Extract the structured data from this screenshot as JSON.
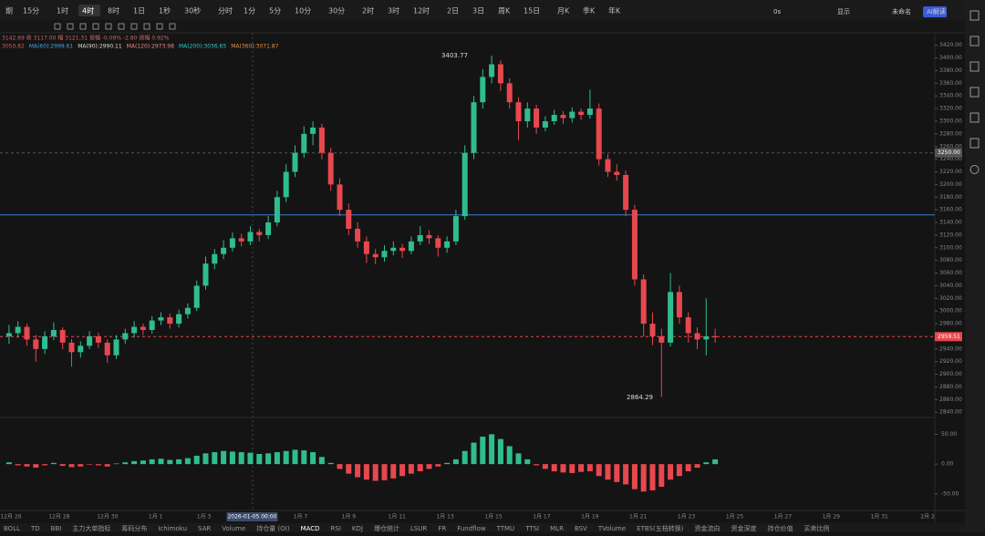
{
  "toolbar": {
    "intervals": [
      "期",
      "15分",
      "1时",
      "4时",
      "8时",
      "1日",
      "1秒",
      "30秒",
      "分时",
      "1分",
      "5分",
      "10分",
      "30分",
      "2时",
      "3时",
      "12时",
      "2日",
      "3日",
      "周K",
      "15日",
      "月K",
      "季K",
      "年K"
    ],
    "active": 3,
    "right": [
      "0s",
      "显示",
      "未命名",
      "AI解读"
    ]
  },
  "legend": {
    "line1": "3142.69  收 3117.00  幅 3121.31  振幅 -0.09% -2.80  振幅 0.92%",
    "line2": [
      "3050.82",
      "MA(60):2999.61",
      "MA(90):2990.11",
      "MA(120):2973.98",
      "MA(200):3036.65",
      "MA(360):3071.87"
    ]
  },
  "chart_data": {
    "type": "candlestick",
    "candles": [
      [
        2960,
        2978,
        2948,
        2965
      ],
      [
        2965,
        2984,
        2958,
        2975
      ],
      [
        2975,
        2980,
        2945,
        2955
      ],
      [
        2955,
        2962,
        2920,
        2940
      ],
      [
        2940,
        2968,
        2932,
        2960
      ],
      [
        2960,
        2982,
        2954,
        2970
      ],
      [
        2970,
        2974,
        2940,
        2950
      ],
      [
        2950,
        2956,
        2912,
        2935
      ],
      [
        2935,
        2952,
        2926,
        2945
      ],
      [
        2945,
        2968,
        2940,
        2960
      ],
      [
        2960,
        2966,
        2942,
        2950
      ],
      [
        2950,
        2955,
        2918,
        2930
      ],
      [
        2930,
        2962,
        2924,
        2955
      ],
      [
        2955,
        2972,
        2948,
        2965
      ],
      [
        2965,
        2984,
        2958,
        2975
      ],
      [
        2975,
        2980,
        2962,
        2970
      ],
      [
        2970,
        2992,
        2964,
        2985
      ],
      [
        2985,
        2998,
        2978,
        2990
      ],
      [
        2990,
        2996,
        2972,
        2980
      ],
      [
        2980,
        3002,
        2974,
        2995
      ],
      [
        2995,
        3012,
        2988,
        3005
      ],
      [
        3005,
        3048,
        3000,
        3040
      ],
      [
        3040,
        3086,
        3034,
        3075
      ],
      [
        3075,
        3098,
        3066,
        3090
      ],
      [
        3090,
        3112,
        3082,
        3100
      ],
      [
        3100,
        3124,
        3094,
        3115
      ],
      [
        3115,
        3122,
        3102,
        3110
      ],
      [
        3110,
        3134,
        3104,
        3125
      ],
      [
        3125,
        3130,
        3110,
        3120
      ],
      [
        3120,
        3150,
        3114,
        3140
      ],
      [
        3140,
        3190,
        3134,
        3180
      ],
      [
        3180,
        3232,
        3172,
        3220
      ],
      [
        3220,
        3262,
        3212,
        3250
      ],
      [
        3250,
        3292,
        3242,
        3280
      ],
      [
        3280,
        3300,
        3262,
        3290
      ],
      [
        3290,
        3296,
        3240,
        3250
      ],
      [
        3250,
        3258,
        3190,
        3200
      ],
      [
        3200,
        3210,
        3150,
        3160
      ],
      [
        3160,
        3170,
        3120,
        3130
      ],
      [
        3130,
        3140,
        3100,
        3110
      ],
      [
        3110,
        3118,
        3076,
        3090
      ],
      [
        3090,
        3098,
        3074,
        3085
      ],
      [
        3085,
        3104,
        3078,
        3095
      ],
      [
        3095,
        3110,
        3088,
        3100
      ],
      [
        3100,
        3106,
        3084,
        3095
      ],
      [
        3095,
        3118,
        3090,
        3110
      ],
      [
        3110,
        3134,
        3104,
        3120
      ],
      [
        3120,
        3128,
        3106,
        3115
      ],
      [
        3115,
        3120,
        3086,
        3100
      ],
      [
        3100,
        3118,
        3092,
        3110
      ],
      [
        3110,
        3160,
        3104,
        3150
      ],
      [
        3150,
        3262,
        3144,
        3250
      ],
      [
        3250,
        3340,
        3240,
        3330
      ],
      [
        3330,
        3382,
        3320,
        3370
      ],
      [
        3370,
        3403.77,
        3360,
        3390
      ],
      [
        3390,
        3396,
        3348,
        3360
      ],
      [
        3360,
        3368,
        3320,
        3330
      ],
      [
        3330,
        3338,
        3270,
        3300
      ],
      [
        3300,
        3330,
        3290,
        3320
      ],
      [
        3320,
        3326,
        3280,
        3290
      ],
      [
        3290,
        3308,
        3284,
        3300
      ],
      [
        3300,
        3318,
        3294,
        3310
      ],
      [
        3310,
        3316,
        3296,
        3305
      ],
      [
        3305,
        3322,
        3298,
        3315
      ],
      [
        3315,
        3320,
        3302,
        3310
      ],
      [
        3310,
        3350,
        3304,
        3320
      ],
      [
        3320,
        3328,
        3230,
        3240
      ],
      [
        3240,
        3248,
        3212,
        3220
      ],
      [
        3220,
        3232,
        3206,
        3215
      ],
      [
        3215,
        3222,
        3150,
        3160
      ],
      [
        3160,
        3168,
        3040,
        3050
      ],
      [
        3050,
        3058,
        2960,
        2980
      ],
      [
        2980,
        2998,
        2946,
        2960
      ],
      [
        2960,
        2972,
        2864.29,
        2950
      ],
      [
        2950,
        3060,
        2944,
        3030
      ],
      [
        3030,
        3040,
        2980,
        2990
      ],
      [
        2990,
        2998,
        2950,
        2965
      ],
      [
        2965,
        2974,
        2940,
        2955
      ],
      [
        2955,
        3020,
        2930,
        2960
      ],
      [
        2960,
        2972,
        2950,
        2959.51
      ]
    ],
    "up_color": "#2fbd8f",
    "down_color": "#e8474e",
    "ylim": [
      2836,
      3434
    ],
    "yticks": [
      {
        "value": 2840,
        "label": "2840.00"
      },
      {
        "value": 2860,
        "label": "2860.00"
      },
      {
        "value": 2880,
        "label": "2880.00"
      },
      {
        "value": 2900,
        "label": "2900.00"
      },
      {
        "value": 2920,
        "label": "2920.00"
      },
      {
        "value": 2940,
        "label": "2940.00"
      },
      {
        "value": 2960,
        "label": "2960.00"
      },
      {
        "value": 2980,
        "label": "2980.00"
      },
      {
        "value": 3000,
        "label": "3000.00"
      },
      {
        "value": 3020,
        "label": "3020.00"
      },
      {
        "value": 3040,
        "label": "3040.00"
      },
      {
        "value": 3060,
        "label": "3060.00"
      },
      {
        "value": 3080,
        "label": "3080.00"
      },
      {
        "value": 3100,
        "label": "3100.00"
      },
      {
        "value": 3120,
        "label": "3120.00"
      },
      {
        "value": 3140,
        "label": "3140.00"
      },
      {
        "value": 3160,
        "label": "3160.00"
      },
      {
        "value": 3180,
        "label": "3180.00"
      },
      {
        "value": 3200,
        "label": "3200.00"
      },
      {
        "value": 3220,
        "label": "3220.00"
      },
      {
        "value": 3240,
        "label": "3240.00"
      },
      {
        "value": 3260,
        "label": "3260.00"
      },
      {
        "value": 3280,
        "label": "3280.00"
      },
      {
        "value": 3300,
        "label": "3300.00"
      },
      {
        "value": 3320,
        "label": "3320.00"
      },
      {
        "value": 3340,
        "label": "3340.00"
      },
      {
        "value": 3360,
        "label": "3360.00"
      },
      {
        "value": 3380,
        "label": "3380.00"
      },
      {
        "value": 3400,
        "label": "3400.00"
      },
      {
        "value": 3420,
        "label": "3420.00"
      }
    ],
    "hline": 3152,
    "price_tags": [
      {
        "value": 3250,
        "label": "3250.00",
        "color": "#555555"
      },
      {
        "value": 2959.51,
        "label": "2959.51",
        "color": "#e8474e"
      }
    ],
    "high_label": "3403.77",
    "low_label": "2864.29",
    "dates": [
      "12月 26",
      "12月 28",
      "12月 30",
      "1月 1",
      "1月 3",
      "2026-01-05 00:00",
      "1月 7",
      "1月 9",
      "1月 11",
      "1月 13",
      "1月 15",
      "1月 17",
      "1月 19",
      "1月 21",
      "1月 23",
      "1月 25",
      "1月 27",
      "1月 29",
      "1月 31",
      "2月 2"
    ],
    "macd": {
      "values": [
        3,
        -2,
        -4,
        -6,
        -2,
        2,
        -3,
        -5,
        -4,
        -1,
        -2,
        -4,
        1,
        3,
        5,
        6,
        8,
        9,
        7,
        8,
        10,
        14,
        18,
        20,
        22,
        21,
        20,
        19,
        17,
        18,
        20,
        22,
        24,
        23,
        20,
        12,
        2,
        -8,
        -16,
        -22,
        -26,
        -28,
        -27,
        -24,
        -20,
        -16,
        -12,
        -8,
        -4,
        2,
        8,
        22,
        36,
        46,
        50,
        42,
        30,
        18,
        8,
        -2,
        -8,
        -12,
        -14,
        -15,
        -13,
        -12,
        -20,
        -26,
        -30,
        -34,
        -42,
        -46,
        -44,
        -38,
        -26,
        -20,
        -12,
        -6,
        3,
        8
      ],
      "ylim": [
        -70,
        75
      ],
      "yticks": [
        {
          "value": 50,
          "label": "50.00"
        },
        {
          "value": 0,
          "label": "0.00"
        },
        {
          "value": -50,
          "label": "-50.00"
        }
      ]
    }
  },
  "tabs": [
    "BOLL",
    "TD",
    "BBI",
    "主力大单指标",
    "筹码分布",
    "Ichimoku",
    "SAR",
    "Volume",
    "持仓量 (OI)",
    "MACD",
    "RSI",
    "KDJ",
    "爆仓统计",
    "LSUR",
    "FR",
    "Fundflow",
    "TTMU",
    "TTSI",
    "MLR",
    "BSV",
    "TVolume",
    "ETBS(五档转换)",
    "资金流向",
    "资金深度",
    "持仓价值",
    "买卖比例"
  ],
  "active_tab": 9
}
